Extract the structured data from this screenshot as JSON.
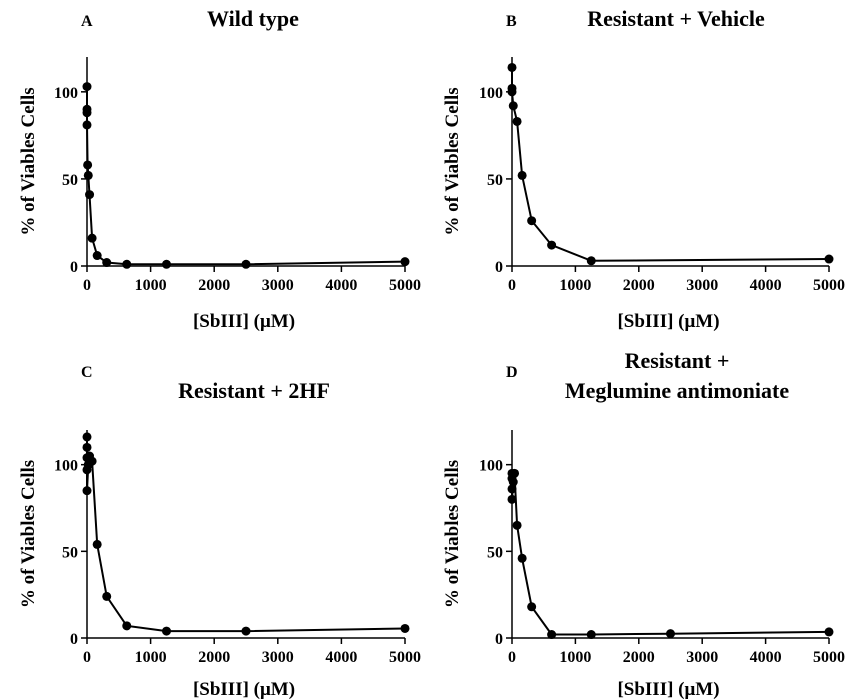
{
  "chart_data": [
    {
      "type": "line",
      "panel": "A",
      "title": "Wild type",
      "title_lines": [
        "Wild type"
      ],
      "xlabel": "[SbIII] (μM)",
      "ylabel": "% of Viables Cells",
      "xlim": [
        0,
        5000
      ],
      "ylim": [
        0,
        120
      ],
      "xticks": [
        0,
        1000,
        2000,
        3000,
        4000,
        5000
      ],
      "yticks": [
        0,
        50,
        100
      ],
      "x": [
        0,
        0,
        0,
        0,
        10,
        20,
        40,
        80,
        160,
        310,
        625,
        1250,
        2500,
        5000
      ],
      "y": [
        103,
        90,
        88,
        81,
        58,
        52,
        41,
        16,
        6,
        2,
        1,
        1,
        1,
        2.5
      ]
    },
    {
      "type": "line",
      "panel": "B",
      "title": "Resistant + Vehicle",
      "title_lines": [
        "Resistant + Vehicle"
      ],
      "xlabel": "[SbIII] (μM)",
      "ylabel": "% of Viables Cells",
      "xlim": [
        0,
        5000
      ],
      "ylim": [
        0,
        120
      ],
      "xticks": [
        0,
        1000,
        2000,
        3000,
        4000,
        5000
      ],
      "yticks": [
        0,
        50,
        100
      ],
      "x": [
        0,
        0,
        0,
        20,
        80,
        160,
        310,
        625,
        1250,
        5000
      ],
      "y": [
        114,
        102,
        100,
        92,
        83,
        52,
        26,
        12,
        3,
        4
      ]
    },
    {
      "type": "line",
      "panel": "C",
      "title": "Resistant + 2HF",
      "title_lines": [
        "Resistant + 2HF"
      ],
      "xlabel": "[SbIII] (μM)",
      "ylabel": "% of Viables Cells",
      "xlim": [
        0,
        5000
      ],
      "ylim": [
        0,
        120
      ],
      "xticks": [
        0,
        1000,
        2000,
        3000,
        4000,
        5000
      ],
      "yticks": [
        0,
        50,
        100
      ],
      "x": [
        0,
        0,
        0,
        0,
        0,
        20,
        40,
        80,
        160,
        310,
        625,
        1250,
        2500,
        5000
      ],
      "y": [
        116,
        110,
        104,
        97,
        85,
        100,
        105,
        102,
        54,
        24,
        7,
        4,
        4,
        5.5
      ]
    },
    {
      "type": "line",
      "panel": "D",
      "title": "Resistant + Meglumine antimoniate",
      "title_lines": [
        "Resistant +",
        "Meglumine antimoniate"
      ],
      "xlabel": "[SbIII] (μM)",
      "ylabel": "% of Viables Cells",
      "xlim": [
        0,
        5000
      ],
      "ylim": [
        0,
        120
      ],
      "xticks": [
        0,
        1000,
        2000,
        3000,
        4000,
        5000
      ],
      "yticks": [
        0,
        50,
        100
      ],
      "x": [
        0,
        0,
        0,
        0,
        20,
        40,
        80,
        160,
        310,
        625,
        1250,
        2500,
        5000
      ],
      "y": [
        95,
        92,
        86,
        80,
        90,
        95,
        65,
        46,
        18,
        2,
        2,
        2.5,
        3.5
      ]
    }
  ]
}
